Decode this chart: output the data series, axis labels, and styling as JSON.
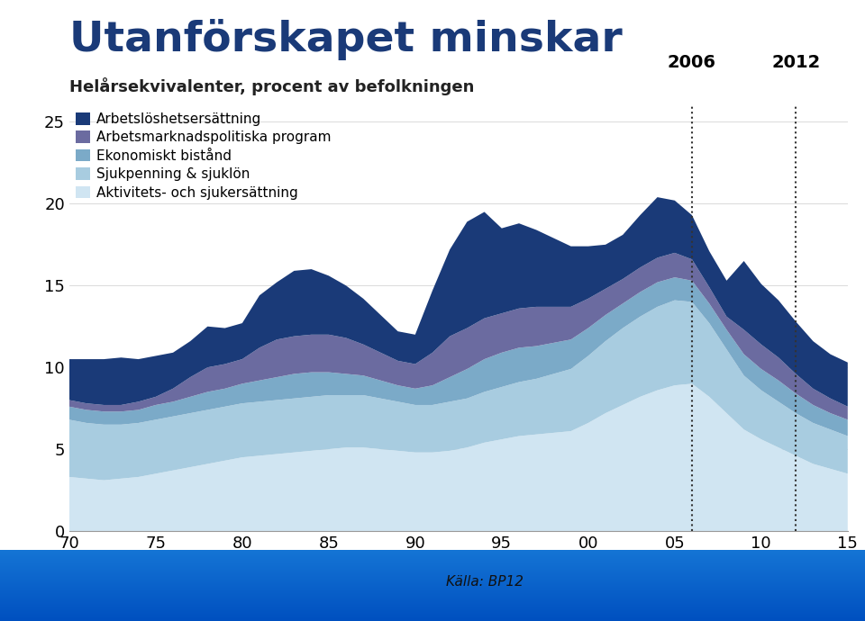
{
  "title": "Utanförskapet minskar",
  "subtitle": "Helårsekvivalenter, procent av befolkningen",
  "source": "Källa: BP12",
  "xlabel_ticks": [
    "70",
    "75",
    "80",
    "85",
    "90",
    "95",
    "00",
    "05",
    "10",
    "15"
  ],
  "ylim": [
    0,
    26
  ],
  "yticks": [
    0,
    5,
    10,
    15,
    20,
    25
  ],
  "vline_2006": 2006,
  "vline_2012": 2012,
  "vline_label_2006": "2006",
  "vline_label_2012": "2012",
  "legend_labels": [
    "Arbetslöshetsersättning",
    "Arbetsmarknadspolitiska program",
    "Ekonomiskt bistånd",
    "Sjukpenning & sjuklön",
    "Aktivitets- och sjukersättning"
  ],
  "colors": [
    "#1a3a78",
    "#6b6ba0",
    "#7baac8",
    "#a8cce0",
    "#d0e5f2"
  ],
  "background_color": "#ffffff",
  "footer_color_top": "#1060c0",
  "footer_color_bottom": "#0040a0",
  "years": [
    1970,
    1971,
    1972,
    1973,
    1974,
    1975,
    1976,
    1977,
    1978,
    1979,
    1980,
    1981,
    1982,
    1983,
    1984,
    1985,
    1986,
    1987,
    1988,
    1989,
    1990,
    1991,
    1992,
    1993,
    1994,
    1995,
    1996,
    1997,
    1998,
    1999,
    2000,
    2001,
    2002,
    2003,
    2004,
    2005,
    2006,
    2007,
    2008,
    2009,
    2010,
    2011,
    2012,
    2013,
    2014,
    2015
  ],
  "series_aktivitets": [
    3.3,
    3.2,
    3.1,
    3.2,
    3.3,
    3.5,
    3.7,
    3.9,
    4.1,
    4.3,
    4.5,
    4.6,
    4.7,
    4.8,
    4.9,
    5.0,
    5.1,
    5.1,
    5.0,
    4.9,
    4.8,
    4.8,
    4.9,
    5.1,
    5.4,
    5.6,
    5.8,
    5.9,
    6.0,
    6.1,
    6.6,
    7.2,
    7.7,
    8.2,
    8.6,
    8.9,
    9.0,
    8.2,
    7.2,
    6.2,
    5.6,
    5.1,
    4.6,
    4.1,
    3.8,
    3.5
  ],
  "series_sjukpenning": [
    3.5,
    3.4,
    3.4,
    3.3,
    3.3,
    3.3,
    3.3,
    3.3,
    3.3,
    3.3,
    3.3,
    3.3,
    3.3,
    3.3,
    3.3,
    3.3,
    3.2,
    3.2,
    3.1,
    3.0,
    2.9,
    2.9,
    3.0,
    3.0,
    3.1,
    3.2,
    3.3,
    3.4,
    3.6,
    3.8,
    4.1,
    4.4,
    4.7,
    4.9,
    5.1,
    5.2,
    5.0,
    4.5,
    3.9,
    3.3,
    3.0,
    2.8,
    2.6,
    2.5,
    2.4,
    2.3
  ],
  "series_ekonomiskt": [
    0.8,
    0.8,
    0.8,
    0.8,
    0.8,
    0.9,
    0.9,
    1.0,
    1.1,
    1.1,
    1.2,
    1.3,
    1.4,
    1.5,
    1.5,
    1.4,
    1.3,
    1.2,
    1.1,
    1.0,
    1.0,
    1.2,
    1.5,
    1.8,
    2.0,
    2.1,
    2.1,
    2.0,
    1.9,
    1.8,
    1.7,
    1.6,
    1.5,
    1.5,
    1.5,
    1.4,
    1.3,
    1.2,
    1.2,
    1.3,
    1.3,
    1.3,
    1.2,
    1.1,
    1.0,
    1.0
  ],
  "series_arbetsmarknads": [
    0.4,
    0.4,
    0.4,
    0.4,
    0.5,
    0.5,
    0.8,
    1.2,
    1.5,
    1.5,
    1.5,
    2.0,
    2.3,
    2.3,
    2.3,
    2.3,
    2.2,
    1.9,
    1.7,
    1.5,
    1.5,
    2.0,
    2.5,
    2.5,
    2.5,
    2.4,
    2.4,
    2.4,
    2.2,
    2.0,
    1.8,
    1.6,
    1.5,
    1.5,
    1.5,
    1.5,
    1.3,
    1.0,
    0.8,
    1.5,
    1.5,
    1.4,
    1.2,
    1.0,
    0.9,
    0.8
  ],
  "series_arbetsloshet": [
    2.5,
    2.7,
    2.8,
    2.9,
    2.6,
    2.5,
    2.2,
    2.2,
    2.5,
    2.2,
    2.2,
    3.2,
    3.5,
    4.0,
    4.0,
    3.6,
    3.2,
    2.8,
    2.3,
    1.8,
    1.8,
    3.8,
    5.3,
    6.5,
    6.5,
    5.2,
    5.2,
    4.7,
    4.2,
    3.7,
    3.2,
    2.7,
    2.7,
    3.2,
    3.7,
    3.2,
    2.7,
    2.2,
    2.2,
    4.2,
    3.7,
    3.5,
    3.2,
    2.9,
    2.7,
    2.7
  ]
}
